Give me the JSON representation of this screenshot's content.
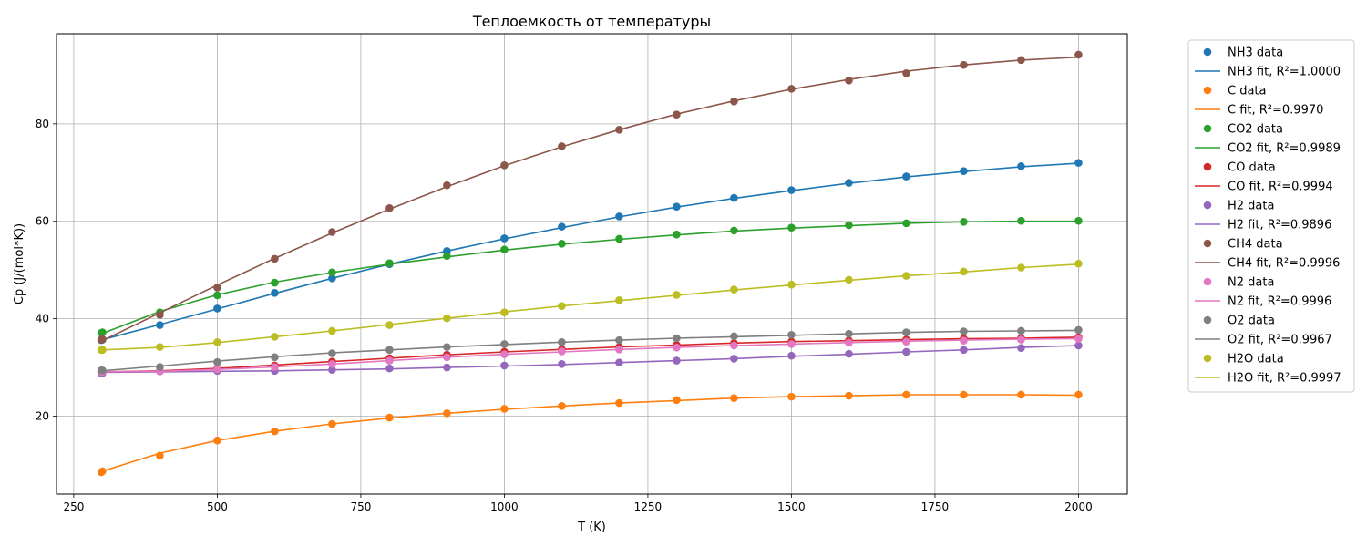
{
  "chart_data": {
    "type": "line",
    "title": "Теплоемкость от температуры",
    "xlabel": "T (K)",
    "ylabel": "Cp (J/(mol*K))",
    "xlim": [
      220,
      2085
    ],
    "ylim": [
      4,
      98.5
    ],
    "xticks": [
      250,
      500,
      750,
      1000,
      1250,
      1500,
      1750,
      2000
    ],
    "yticks": [
      20,
      40,
      60,
      80
    ],
    "grid": true,
    "legend_position": "outside-right",
    "x": [
      298,
      300,
      400,
      500,
      600,
      700,
      800,
      900,
      1000,
      1100,
      1200,
      1300,
      1400,
      1500,
      1600,
      1700,
      1800,
      1900,
      2000
    ],
    "series": [
      {
        "key": "nh3",
        "color": "#1f77b4",
        "data_label": "NH3 data",
        "fit_label": "NH3 fit, R²=1.0000",
        "values": [
          35.6,
          35.7,
          38.7,
          42.1,
          45.3,
          48.3,
          51.2,
          53.9,
          56.5,
          58.9,
          61.0,
          63.0,
          64.8,
          66.4,
          67.9,
          69.2,
          70.3,
          71.3,
          72.0
        ],
        "fit": [
          35.6,
          35.7,
          38.8,
          42.0,
          45.2,
          48.3,
          51.2,
          53.9,
          56.4,
          58.7,
          60.9,
          62.9,
          64.7,
          66.3,
          67.8,
          69.1,
          70.2,
          71.2,
          71.9
        ]
      },
      {
        "key": "c",
        "color": "#ff7f0e",
        "data_label": "C data",
        "fit_label": "C fit, R²=0.9970",
        "values": [
          8.5,
          8.7,
          11.9,
          15.0,
          16.9,
          18.4,
          19.7,
          20.6,
          21.5,
          22.1,
          22.7,
          23.3,
          23.7,
          24.0,
          24.2,
          24.4,
          24.4,
          24.4,
          24.4
        ],
        "fit": [
          8.5,
          8.7,
          12.4,
          15.0,
          16.9,
          18.4,
          19.6,
          20.6,
          21.4,
          22.1,
          22.7,
          23.2,
          23.7,
          24.0,
          24.2,
          24.4,
          24.4,
          24.4,
          24.3
        ]
      },
      {
        "key": "co2",
        "color": "#2ca02c",
        "data_label": "CO2 data",
        "fit_label": "CO2 fit, R²=0.9989",
        "values": [
          37.1,
          37.2,
          41.3,
          44.8,
          47.4,
          49.5,
          51.4,
          52.9,
          54.2,
          55.4,
          56.4,
          57.3,
          58.1,
          58.7,
          59.2,
          59.6,
          59.9,
          60.1,
          60.1
        ],
        "fit": [
          36.9,
          37.0,
          41.5,
          44.9,
          47.5,
          49.5,
          51.2,
          52.7,
          54.1,
          55.3,
          56.3,
          57.2,
          58.0,
          58.6,
          59.1,
          59.6,
          59.9,
          60.0,
          60.0
        ]
      },
      {
        "key": "co",
        "color": "#d62728",
        "data_label": "CO data",
        "fit_label": "CO fit, R²=0.9994",
        "values": [
          29.1,
          29.1,
          29.3,
          29.8,
          30.4,
          31.2,
          31.9,
          32.6,
          33.2,
          33.7,
          34.2,
          34.6,
          35.0,
          35.3,
          35.5,
          35.7,
          35.9,
          36.0,
          36.2
        ],
        "fit": [
          29.1,
          29.1,
          29.3,
          29.8,
          30.5,
          31.2,
          31.9,
          32.6,
          33.2,
          33.7,
          34.2,
          34.6,
          35.0,
          35.3,
          35.5,
          35.7,
          35.9,
          36.0,
          36.2
        ]
      },
      {
        "key": "h2",
        "color": "#9467bd",
        "data_label": "H2 data",
        "fit_label": "H2 fit, R²=0.9896",
        "values": [
          28.8,
          28.8,
          29.2,
          29.3,
          29.3,
          29.5,
          29.8,
          30.0,
          30.4,
          30.7,
          31.0,
          31.4,
          31.8,
          32.4,
          32.8,
          33.2,
          33.6,
          34.0,
          34.5
        ],
        "fit": [
          29.0,
          29.0,
          29.1,
          29.2,
          29.3,
          29.5,
          29.7,
          30.0,
          30.3,
          30.6,
          31.0,
          31.4,
          31.8,
          32.3,
          32.7,
          33.2,
          33.6,
          34.1,
          34.5
        ]
      },
      {
        "key": "ch4",
        "color": "#8c564b",
        "data_label": "CH4 data",
        "fit_label": "CH4 fit, R²=0.9996",
        "values": [
          35.7,
          35.8,
          40.8,
          46.4,
          52.3,
          57.8,
          62.7,
          67.4,
          71.5,
          75.4,
          78.8,
          81.9,
          84.6,
          87.2,
          88.9,
          90.4,
          92.1,
          93.1,
          94.2
        ],
        "fit": [
          35.4,
          35.5,
          41.2,
          46.9,
          52.4,
          57.6,
          62.5,
          67.1,
          71.4,
          75.3,
          78.8,
          82.0,
          84.7,
          87.1,
          89.1,
          90.8,
          92.1,
          93.1,
          93.7
        ]
      },
      {
        "key": "n2",
        "color": "#e377c2",
        "data_label": "N2 data",
        "fit_label": "N2 fit, R²=0.9996",
        "values": [
          29.1,
          29.1,
          29.2,
          29.6,
          30.1,
          30.7,
          31.4,
          32.1,
          32.7,
          33.3,
          33.7,
          34.1,
          34.5,
          34.8,
          35.1,
          35.3,
          35.5,
          35.7,
          35.9
        ],
        "fit": [
          29.1,
          29.1,
          29.2,
          29.6,
          30.1,
          30.7,
          31.4,
          32.1,
          32.7,
          33.2,
          33.7,
          34.1,
          34.5,
          34.8,
          35.1,
          35.4,
          35.6,
          35.8,
          35.9
        ]
      },
      {
        "key": "o2",
        "color": "#7f7f7f",
        "data_label": "O2 data",
        "fit_label": "O2 fit, R²=0.9967",
        "values": [
          29.4,
          29.4,
          30.1,
          31.1,
          32.1,
          32.9,
          33.6,
          34.2,
          34.8,
          35.2,
          35.6,
          36.0,
          36.4,
          36.7,
          36.9,
          37.2,
          37.4,
          37.5,
          37.7
        ],
        "fit": [
          29.3,
          29.3,
          30.3,
          31.3,
          32.2,
          33.0,
          33.6,
          34.2,
          34.7,
          35.2,
          35.6,
          36.0,
          36.3,
          36.6,
          36.9,
          37.2,
          37.4,
          37.5,
          37.6
        ]
      },
      {
        "key": "h2o",
        "color": "#bcbd22",
        "data_label": "H2O data",
        "fit_label": "H2O fit, R²=0.9997",
        "values": [
          33.6,
          33.6,
          34.2,
          35.2,
          36.3,
          37.5,
          38.7,
          40.1,
          41.3,
          42.6,
          43.8,
          44.9,
          46.0,
          47.0,
          48.0,
          48.8,
          49.7,
          50.5,
          51.3
        ],
        "fit": [
          33.6,
          33.6,
          34.1,
          35.1,
          36.3,
          37.5,
          38.8,
          40.1,
          41.4,
          42.6,
          43.7,
          44.8,
          45.9,
          46.9,
          47.9,
          48.8,
          49.6,
          50.5,
          51.2
        ]
      }
    ]
  }
}
